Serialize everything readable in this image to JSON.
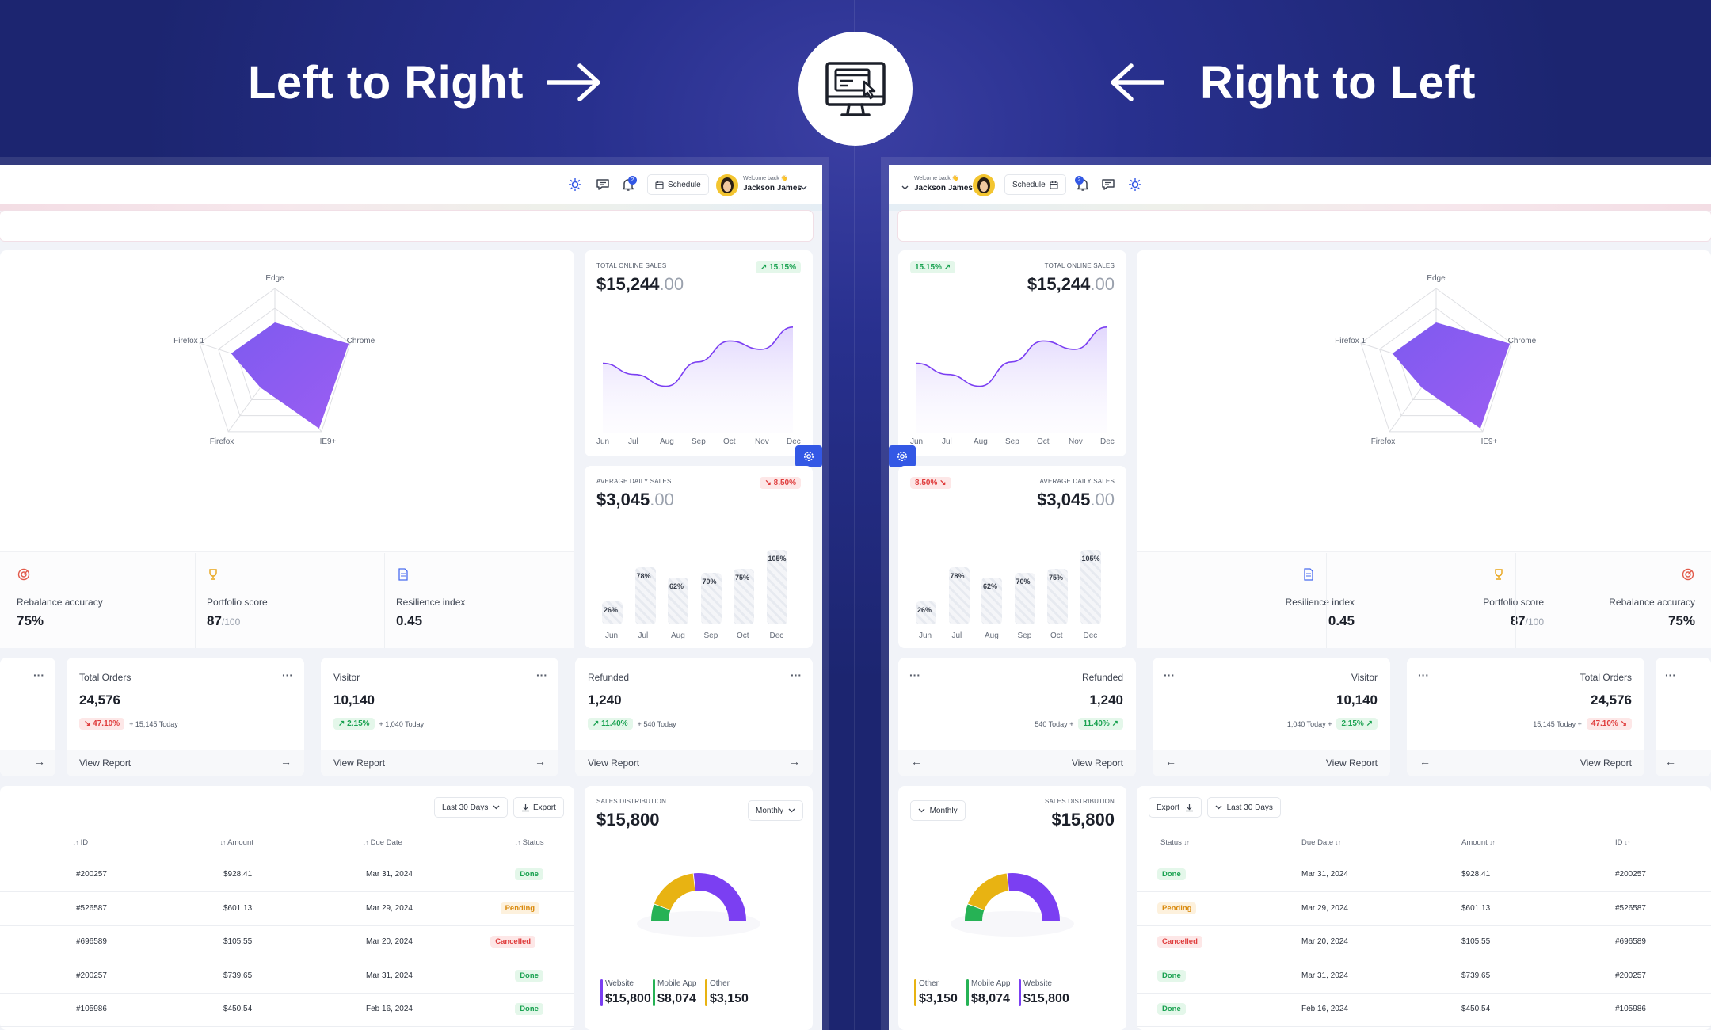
{
  "header": {
    "ltr_title": "Left to Right",
    "rtl_title": "Right to Left",
    "center_icon": "monitor-cursor-icon"
  },
  "topbar": {
    "welcome": "Welcome back 👋",
    "user_name": "Jackson James",
    "schedule": "Schedule",
    "notification_count": "2"
  },
  "radar": {
    "axes": [
      "Edge",
      "Chrome",
      "IE9+",
      "Firefox",
      "Firefox 1"
    ],
    "values": [
      0.57,
      0.98,
      0.95,
      0.31,
      0.58
    ],
    "color": "#8a57f0"
  },
  "online_sales": {
    "label": "TOTAL ONLINE SALES",
    "amount": "$15,244",
    "decimals": ".00",
    "change": "15.15%",
    "months": [
      "Jun",
      "Jul",
      "Aug",
      "Sep",
      "Oct",
      "Nov",
      "Dec"
    ]
  },
  "daily_sales": {
    "label": "AVERAGE DAILY SALES",
    "amount": "$3,045",
    "decimals": ".00",
    "change": "8.50%",
    "bars": [
      {
        "month": "Jun",
        "value": 26,
        "label": "26%"
      },
      {
        "month": "Jul",
        "value": 78,
        "label": "78%"
      },
      {
        "month": "Aug",
        "value": 62,
        "label": "62%"
      },
      {
        "month": "Sep",
        "value": 70,
        "label": "70%"
      },
      {
        "month": "Oct",
        "value": 75,
        "label": "75%"
      },
      {
        "month": "Dec",
        "value": 105,
        "label": "105%"
      }
    ]
  },
  "stats": [
    {
      "label": "Rebalance accuracy",
      "value": "75%",
      "unit": "",
      "icon": "target-icon",
      "color": "#e25b4b"
    },
    {
      "label": "Portfolio score",
      "value": "87",
      "unit": "/100",
      "icon": "trophy-icon",
      "color": "#e8a317"
    },
    {
      "label": "Resilience index",
      "value": "0.45",
      "unit": "",
      "icon": "document-icon",
      "color": "#4a6cf0"
    }
  ],
  "kpis": [
    {
      "title": "Total Orders",
      "value": "24,576",
      "change": "47.10%",
      "dir": "down",
      "today": "15,145 Today",
      "link": "View Report"
    },
    {
      "title": "Visitor",
      "value": "10,140",
      "change": "2.15%",
      "dir": "up",
      "today": "1,040 Today",
      "link": "View Report"
    },
    {
      "title": "Refunded",
      "value": "1,240",
      "change": "11.40%",
      "dir": "up",
      "today": "540 Today",
      "link": "View Report"
    }
  ],
  "table": {
    "filter": "Last 30 Days",
    "export": "Export",
    "headers": {
      "id": "ID",
      "amount": "Amount",
      "due": "Due Date",
      "status": "Status"
    },
    "rows": [
      {
        "id": "#200257",
        "amount": "$928.41",
        "due": "Mar 31, 2024",
        "status": "Done"
      },
      {
        "id": "#526587",
        "amount": "$601.13",
        "due": "Mar 29, 2024",
        "status": "Pending"
      },
      {
        "id": "#696589",
        "amount": "$105.55",
        "due": "Mar 20, 2024",
        "status": "Cancelled"
      },
      {
        "id": "#200257",
        "amount": "$739.65",
        "due": "Mar 31, 2024",
        "status": "Done"
      },
      {
        "id": "#105986",
        "amount": "$450.54",
        "due": "Feb 16, 2024",
        "status": "Done"
      }
    ]
  },
  "distribution": {
    "label": "SALES DISTRIBUTION",
    "amount": "$15,800",
    "period": "Monthly",
    "segments": [
      {
        "name": "Website",
        "value": "$15,800",
        "color": "#7b3ff2"
      },
      {
        "name": "Mobile App",
        "value": "$8,074",
        "color": "#26b255"
      },
      {
        "name": "Other",
        "value": "$3,150",
        "color": "#e8b312"
      }
    ]
  },
  "colors": {
    "accent": "#7b3ff2",
    "primary": "#3358e5",
    "up": "#1aa251",
    "down": "#df3c3c"
  }
}
